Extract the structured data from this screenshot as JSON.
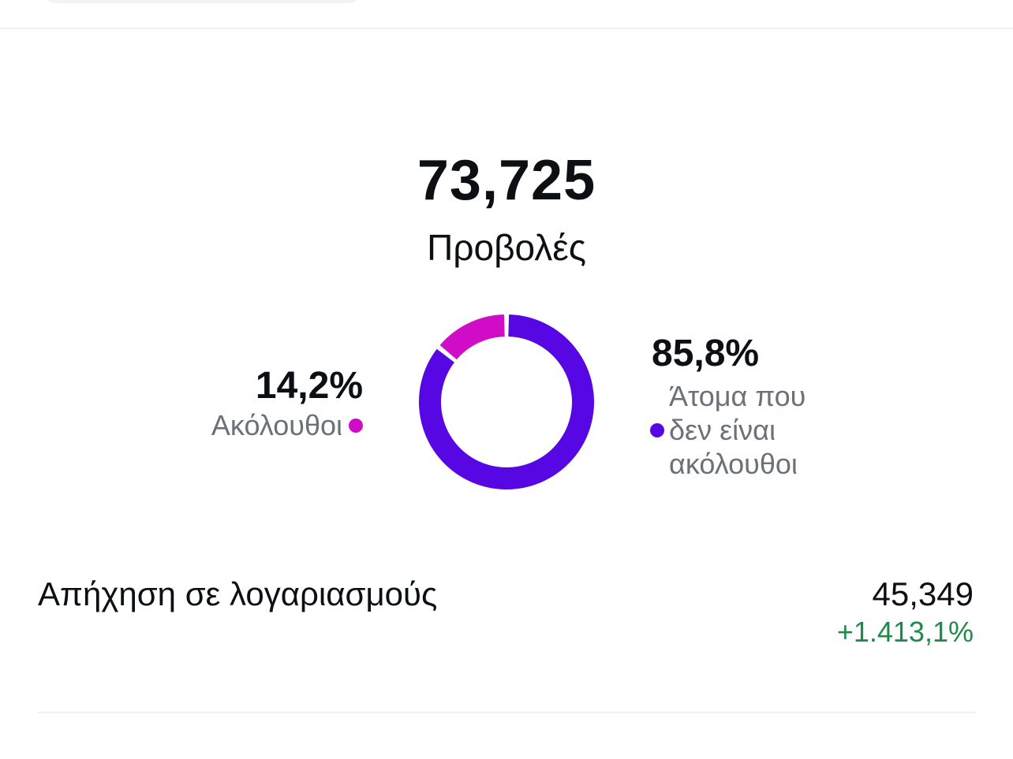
{
  "summary": {
    "total_views": "73,725",
    "views_label": "Προβολές"
  },
  "audience": {
    "followers": {
      "percent": "14,2%",
      "label": "Ακόλουθοι",
      "value": 14.2,
      "color": "#d10cc7"
    },
    "non_followers": {
      "percent": "85,8%",
      "label": "Άτομα που δεν είναι ακόλουθοι",
      "value": 85.8,
      "color": "#5607e3"
    }
  },
  "reach": {
    "label": "Απήχηση σε λογαριασμούς",
    "value": "45,349",
    "change": "+1.413,1%",
    "change_color": "#1f8a47"
  }
}
